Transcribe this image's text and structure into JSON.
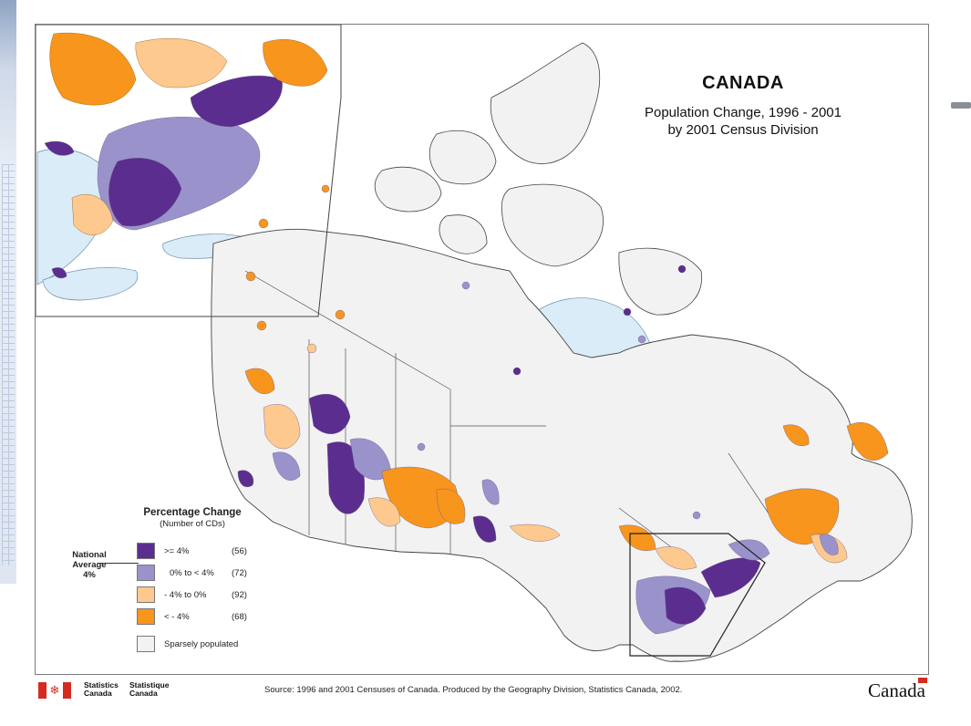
{
  "title": {
    "main": "CANADA",
    "line1": "Population Change, 1996 - 2001",
    "line2": "by 2001 Census Division"
  },
  "legend": {
    "heading": "Percentage Change",
    "subheading": "(Number of CDs)",
    "national_average": [
      "National",
      "Average",
      "4%"
    ],
    "items": [
      {
        "label": ">= 4%",
        "count": "(56)",
        "color": "#5b2d8e"
      },
      {
        "label": "0% to < 4%",
        "count": "(72)",
        "color": "#9a93cb"
      },
      {
        "label": "- 4% to 0%",
        "count": "(92)",
        "color": "#fdc98f"
      },
      {
        "label": "< - 4%",
        "count": "(68)",
        "color": "#f7951d"
      },
      {
        "label": "Sparsely populated",
        "count": "",
        "color": "#f2f2f2"
      }
    ]
  },
  "footer": {
    "agency_en": [
      "Statistics",
      "Canada"
    ],
    "agency_fr": [
      "Statistique",
      "Canada"
    ],
    "source": "Source:  1996 and 2001 Censuses of Canada.  Produced by the Geography Division, Statistics Canada, 2002.",
    "wordmark": "Canada"
  },
  "colors": {
    "water": "#d9ecf8",
    "land": "#f2f2f2",
    "high": "#5b2d8e",
    "mid": "#9a93cb",
    "lowneg": "#fdc98f",
    "neg": "#f7951d"
  }
}
